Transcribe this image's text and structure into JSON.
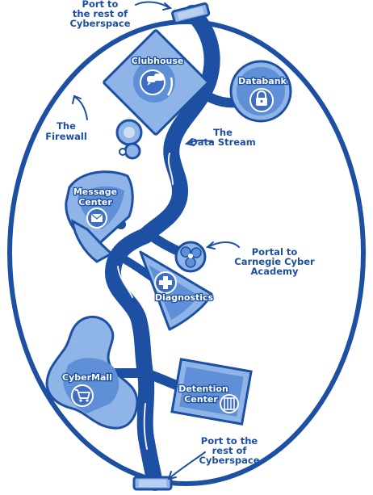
{
  "colors": {
    "outline": "#1d4fa3",
    "fill_light": "#8fb5e8",
    "fill_pale": "#b9d0f0",
    "fill_mid": "#5f8fd6",
    "fill_deep": "#3d6ec4",
    "white": "#ffffff"
  },
  "labels": {
    "port_top": [
      "Port to",
      "the rest of",
      "Cyberspace"
    ],
    "port_bottom": [
      "Port to the",
      "rest of",
      "Cyberspace"
    ],
    "firewall": [
      "The",
      "Firewall"
    ],
    "data_stream": [
      "The",
      "Data Stream"
    ],
    "portal": [
      "Portal to",
      "Carnegie Cyber",
      "Academy"
    ],
    "clubhouse": "Clubhouse",
    "databank": "Databank",
    "message_center": [
      "Message",
      "Center"
    ],
    "diagnostics": "Diagnostics",
    "cybermall": "CyberMall",
    "detention_center": [
      "Detention",
      "Center"
    ]
  },
  "icons": {
    "clubhouse": "speech-bubbles-icon",
    "databank": "padlock-icon",
    "message_center": "envelope-icon",
    "diagnostics": "medical-cross-icon",
    "cybermall": "shopping-cart-icon",
    "detention_center": "jail-icon",
    "portal": "portal-orb-icon"
  }
}
